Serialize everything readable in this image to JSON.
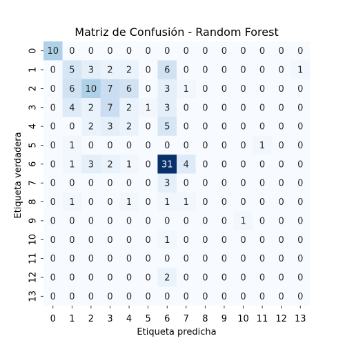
{
  "chart_data": {
    "type": "heatmap",
    "title": "Matriz de Confusión - Random Forest",
    "xlabel": "Etiqueta predicha",
    "ylabel": "Etiqueta verdadera",
    "x_categories": [
      "0",
      "1",
      "2",
      "3",
      "4",
      "5",
      "6",
      "7",
      "8",
      "9",
      "10",
      "11",
      "12",
      "13"
    ],
    "y_categories": [
      "0",
      "1",
      "2",
      "3",
      "4",
      "5",
      "6",
      "7",
      "8",
      "9",
      "10",
      "11",
      "12",
      "13"
    ],
    "colormap": "Blues",
    "vmin": 0,
    "vmax": 31,
    "grid": false,
    "colorbar": false,
    "values": [
      [
        10,
        0,
        0,
        0,
        0,
        0,
        0,
        0,
        0,
        0,
        0,
        0,
        0,
        0
      ],
      [
        0,
        5,
        3,
        2,
        2,
        0,
        6,
        0,
        0,
        0,
        0,
        0,
        0,
        1
      ],
      [
        0,
        6,
        10,
        7,
        6,
        0,
        3,
        1,
        0,
        0,
        0,
        0,
        0,
        0
      ],
      [
        0,
        4,
        2,
        7,
        2,
        1,
        3,
        0,
        0,
        0,
        0,
        0,
        0,
        0
      ],
      [
        0,
        0,
        2,
        3,
        2,
        0,
        5,
        0,
        0,
        0,
        0,
        0,
        0,
        0
      ],
      [
        0,
        1,
        0,
        0,
        0,
        0,
        0,
        0,
        0,
        0,
        0,
        1,
        0,
        0
      ],
      [
        0,
        1,
        3,
        2,
        1,
        0,
        31,
        4,
        0,
        0,
        0,
        0,
        0,
        0
      ],
      [
        0,
        0,
        0,
        0,
        0,
        0,
        3,
        0,
        0,
        0,
        0,
        0,
        0,
        0
      ],
      [
        0,
        1,
        0,
        0,
        1,
        0,
        1,
        1,
        0,
        0,
        0,
        0,
        0,
        0
      ],
      [
        0,
        0,
        0,
        0,
        0,
        0,
        0,
        0,
        0,
        0,
        1,
        0,
        0,
        0
      ],
      [
        0,
        0,
        0,
        0,
        0,
        0,
        1,
        0,
        0,
        0,
        0,
        0,
        0,
        0
      ],
      [
        0,
        0,
        0,
        0,
        0,
        0,
        0,
        0,
        0,
        0,
        0,
        0,
        0,
        0
      ],
      [
        0,
        0,
        0,
        0,
        0,
        0,
        2,
        0,
        0,
        0,
        0,
        0,
        0,
        0
      ],
      [
        0,
        0,
        0,
        0,
        0,
        0,
        0,
        0,
        0,
        0,
        0,
        0,
        0,
        0
      ]
    ]
  }
}
